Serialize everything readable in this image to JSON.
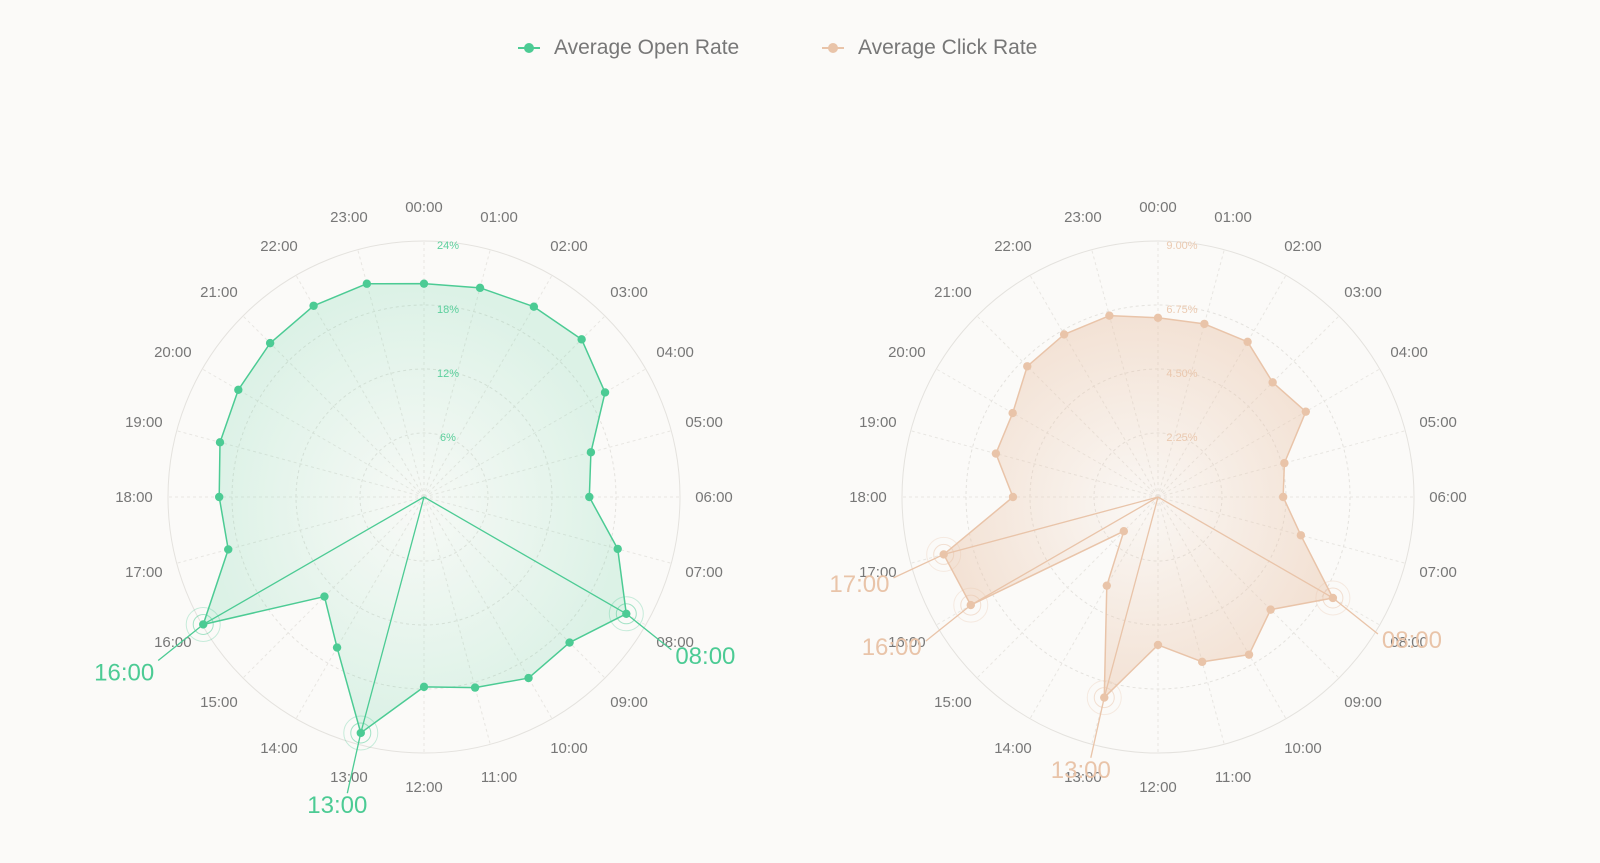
{
  "legend": [
    {
      "label": "Average Open Rate",
      "color": "#4ccb94"
    },
    {
      "label": "Average Click Rate",
      "color": "#e9c4a9"
    }
  ],
  "chart_data": [
    {
      "type": "radar",
      "series_name": "Average Open Rate",
      "color": "#4ccb94",
      "categories": [
        "00:00",
        "01:00",
        "02:00",
        "03:00",
        "04:00",
        "05:00",
        "06:00",
        "07:00",
        "08:00",
        "09:00",
        "10:00",
        "11:00",
        "12:00",
        "13:00",
        "14:00",
        "15:00",
        "16:00",
        "17:00",
        "18:00",
        "19:00",
        "20:00",
        "21:00",
        "22:00",
        "23:00"
      ],
      "values": [
        20.0,
        20.3,
        20.6,
        20.9,
        19.6,
        16.2,
        15.5,
        18.8,
        21.9,
        19.3,
        19.6,
        18.5,
        17.8,
        22.9,
        16.3,
        13.2,
        23.9,
        19.0,
        19.2,
        19.8,
        20.1,
        20.4,
        20.7,
        20.7
      ],
      "rlim": [
        0,
        24
      ],
      "radial_ticks": [
        "6%",
        "12%",
        "18%",
        "24%"
      ],
      "highlights": [
        "08:00",
        "13:00",
        "16:00"
      ]
    },
    {
      "type": "radar",
      "series_name": "Average Click Rate",
      "color": "#e9c4a9",
      "categories": [
        "00:00",
        "01:00",
        "02:00",
        "03:00",
        "04:00",
        "05:00",
        "06:00",
        "07:00",
        "08:00",
        "09:00",
        "10:00",
        "11:00",
        "12:00",
        "13:00",
        "14:00",
        "15:00",
        "16:00",
        "17:00",
        "18:00",
        "19:00",
        "20:00",
        "21:00",
        "22:00",
        "23:00"
      ],
      "values": [
        6.3,
        6.3,
        6.3,
        5.7,
        6.0,
        4.6,
        4.4,
        5.2,
        7.1,
        5.6,
        6.4,
        6.0,
        5.2,
        7.3,
        3.6,
        1.7,
        7.6,
        7.8,
        5.1,
        5.9,
        5.9,
        6.5,
        6.6,
        6.6
      ],
      "rlim": [
        0,
        9
      ],
      "radial_ticks": [
        "2.25%",
        "4.50%",
        "6.75%",
        "9.00%"
      ],
      "highlights": [
        "08:00",
        "13:00",
        "16:00",
        "17:00"
      ]
    }
  ]
}
